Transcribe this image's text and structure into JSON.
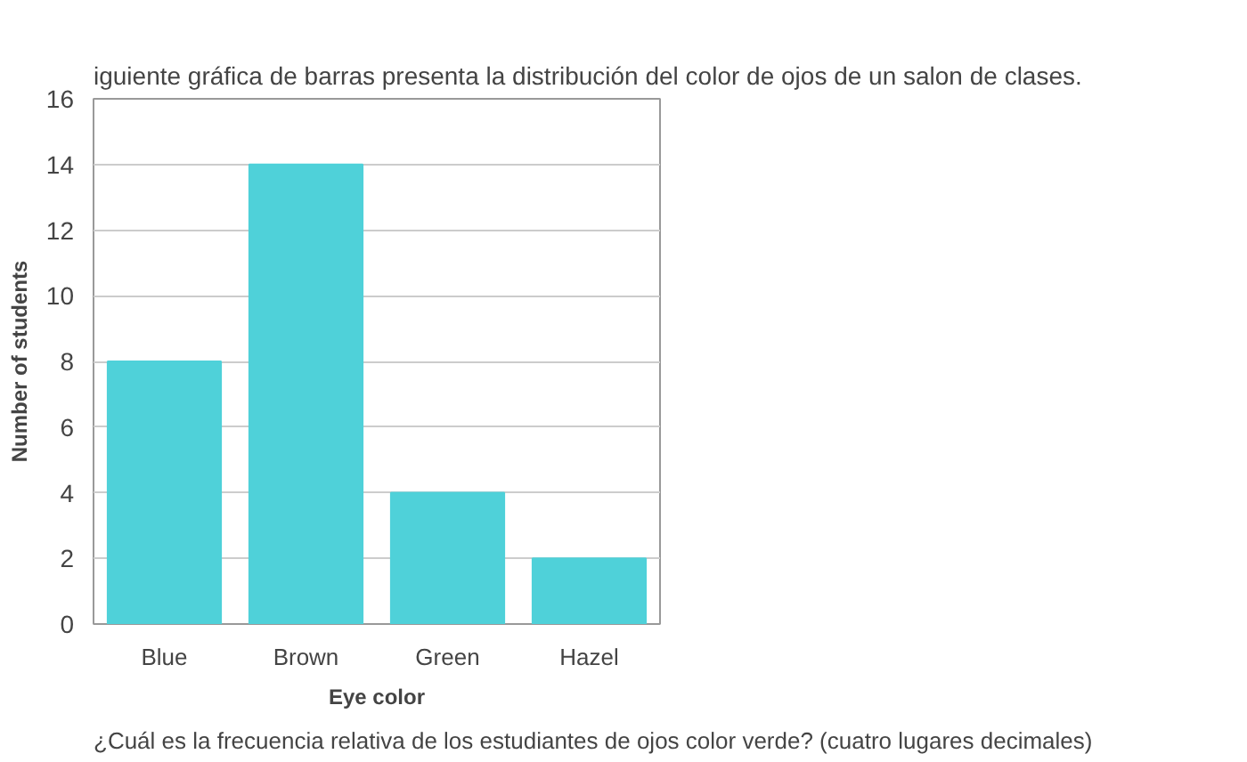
{
  "chart_data": {
    "type": "bar",
    "title": "iguiente gráfica de barras presenta la distribución del color de ojos de un salon de clases.",
    "categories": [
      "Blue",
      "Brown",
      "Green",
      "Hazel"
    ],
    "values": [
      8,
      14,
      4,
      2
    ],
    "color": "#4fd1d9",
    "xlabel": "Eye color",
    "ylabel": "Number of students",
    "ylim": [
      0,
      16
    ],
    "yticks": [
      0,
      2,
      4,
      6,
      8,
      10,
      12,
      14,
      16
    ],
    "grid": "y",
    "annotations": [
      "¿Cuál es la frecuencia relativa de los estudiantes de ojos color verde? (cuatro lugares decimales)"
    ]
  }
}
